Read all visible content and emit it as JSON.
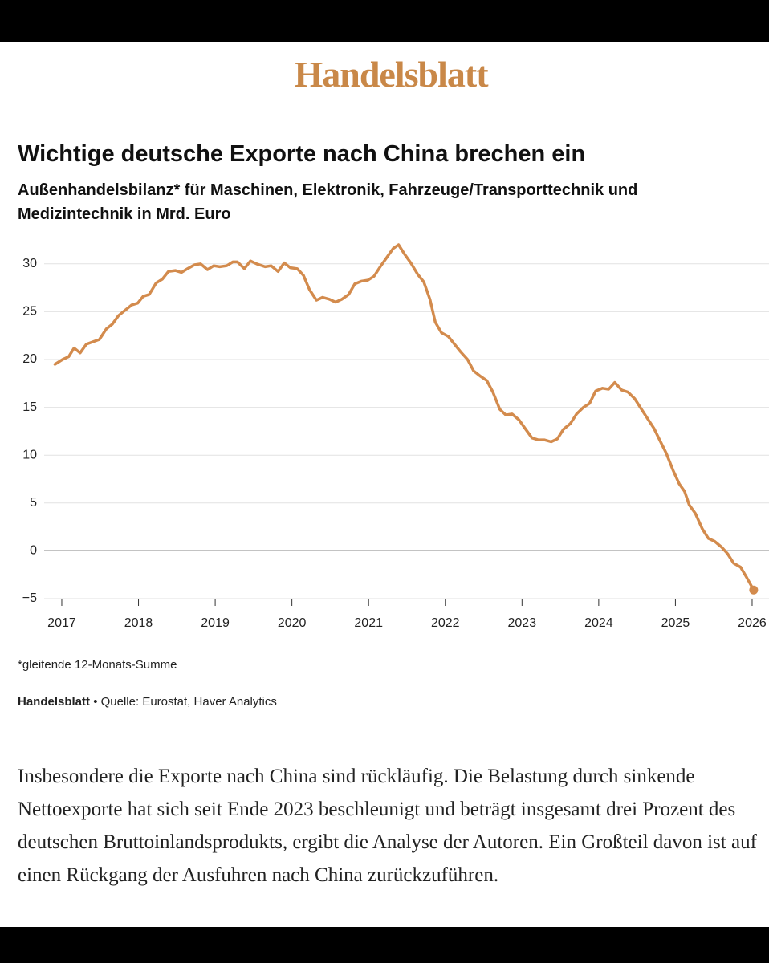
{
  "header": {
    "logo": "Handelsblatt"
  },
  "chart_data": {
    "type": "line",
    "title": "Wichtige deutsche Exporte nach China brechen ein",
    "subtitle": "Außenhandelsbilanz* für Maschinen, Elektronik, Fahrzeuge/Transporttechnik und Medizintechnik in Mrd. Euro",
    "x": [
      2016.91,
      2017.01,
      2017.09,
      2017.16,
      2017.24,
      2017.32,
      2017.49,
      2017.58,
      2017.66,
      2017.74,
      2017.91,
      2017.99,
      2018.06,
      2018.14,
      2018.23,
      2018.31,
      2018.39,
      2018.48,
      2018.56,
      2018.64,
      2018.73,
      2018.81,
      2018.9,
      2018.98,
      2019.06,
      2019.15,
      2019.23,
      2019.29,
      2019.38,
      2019.46,
      2019.54,
      2019.65,
      2019.73,
      2019.82,
      2019.9,
      2019.98,
      2020.07,
      2020.15,
      2020.23,
      2020.32,
      2020.4,
      2020.49,
      2020.57,
      2020.65,
      2020.74,
      2020.82,
      2020.91,
      2020.99,
      2021.07,
      2021.16,
      2021.24,
      2021.32,
      2021.39,
      2021.47,
      2021.55,
      2021.64,
      2021.72,
      2021.8,
      2021.87,
      2021.95,
      2022.04,
      2022.12,
      2022.2,
      2022.29,
      2022.37,
      2022.45,
      2022.54,
      2022.62,
      2022.71,
      2022.79,
      2022.87,
      2022.96,
      2023.04,
      2023.13,
      2023.21,
      2023.29,
      2023.38,
      2023.46,
      2023.54,
      2023.63,
      2023.71,
      2023.8,
      2023.88,
      2023.96,
      2024.05,
      2024.13,
      2024.21,
      2024.3,
      2024.38,
      2024.47,
      2024.55,
      2024.63,
      2024.72,
      2024.8,
      2024.88,
      2024.97,
      2025.05,
      2025.12,
      2025.18,
      2025.26,
      2025.35,
      2025.43,
      2025.51,
      2025.6,
      2025.68,
      2025.76,
      2025.85,
      2025.93,
      2026.02
    ],
    "series": [
      {
        "color": "#d38b4d",
        "values": [
          19.5,
          20.0,
          20.3,
          21.2,
          20.7,
          21.6,
          22.1,
          23.2,
          23.7,
          24.6,
          25.7,
          25.9,
          26.6,
          26.8,
          28.0,
          28.4,
          29.2,
          29.3,
          29.1,
          29.5,
          29.9,
          30.0,
          29.4,
          29.8,
          29.7,
          29.8,
          30.2,
          30.2,
          29.5,
          30.3,
          30.0,
          29.7,
          29.8,
          29.2,
          30.1,
          29.6,
          29.5,
          28.8,
          27.3,
          26.2,
          26.5,
          26.3,
          26.0,
          26.3,
          26.8,
          27.9,
          28.2,
          28.3,
          28.7,
          29.8,
          30.7,
          31.6,
          32.0,
          31.0,
          30.1,
          28.9,
          28.1,
          26.3,
          23.9,
          22.8,
          22.4,
          21.6,
          20.8,
          20.0,
          18.8,
          18.3,
          17.8,
          16.6,
          14.8,
          14.2,
          14.3,
          13.7,
          12.8,
          11.8,
          11.6,
          11.6,
          11.4,
          11.7,
          12.7,
          13.3,
          14.3,
          15.0,
          15.4,
          16.7,
          17.0,
          16.9,
          17.6,
          16.8,
          16.6,
          15.9,
          14.9,
          13.9,
          12.8,
          11.5,
          10.2,
          8.4,
          7.0,
          6.2,
          4.8,
          3.9,
          2.3,
          1.3,
          1.0,
          0.4,
          -0.3,
          -1.3,
          -1.7,
          -2.8,
          -4.1
        ]
      }
    ],
    "xlim": [
      2016.77,
      2026.22
    ],
    "xticks": [
      2017,
      2018,
      2019,
      2020,
      2021,
      2022,
      2023,
      2024,
      2025,
      2026
    ],
    "ylim": [
      -5,
      32.5
    ],
    "yticks": [
      {
        "value": -5,
        "label": "−5"
      },
      0,
      5,
      10,
      15,
      20,
      25,
      30
    ],
    "grid": true,
    "note": "*gleitende 12-Monats-Summe",
    "source_brand": "Handelsblatt",
    "separator": "•",
    "source": "Quelle: Eurostat, Haver Analytics"
  },
  "article": {
    "paragraph": "Insbesondere die Exporte nach China sind rückläufig. Die Belastung durch sinkende Nettoexporte hat sich seit Ende 2023 beschleunigt und beträgt insgesamt drei Prozent des deutschen Bruttoinlandsprodukts, ergibt die Analyse der Autoren. Ein Großteil davon ist auf einen Rückgang der Ausfuhren nach China zurückzuführen."
  }
}
